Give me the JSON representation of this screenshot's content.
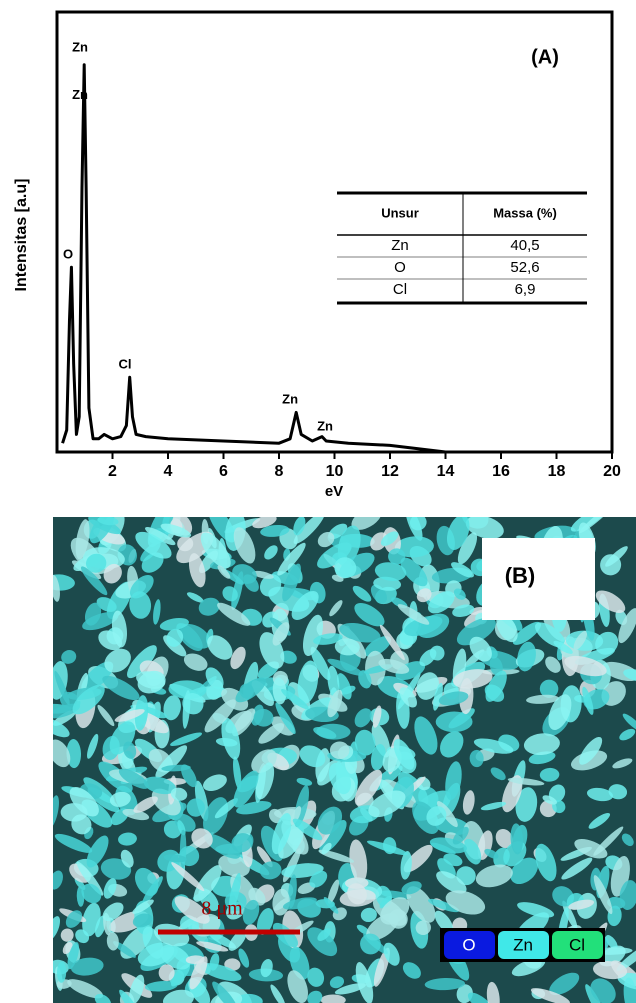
{
  "chart_data": {
    "type": "line",
    "title": "(A)",
    "x_label": "eV",
    "y_label": "Intensitas [a.u]",
    "x": [
      0.2,
      0.35,
      0.45,
      0.52,
      0.6,
      0.7,
      0.8,
      0.9,
      0.98,
      1.05,
      1.15,
      1.3,
      1.5,
      1.7,
      2.0,
      2.3,
      2.5,
      2.62,
      2.72,
      2.85,
      3.2,
      4,
      6,
      8,
      8.4,
      8.62,
      8.8,
      9.2,
      9.55,
      9.7,
      10.5,
      12,
      14
    ],
    "y": [
      2,
      5,
      30,
      42,
      20,
      4,
      8,
      60,
      88,
      60,
      10,
      3,
      3,
      4,
      3,
      3.5,
      6,
      17,
      8,
      4,
      3.5,
      3,
      2.5,
      2,
      3,
      9,
      4,
      2.5,
      3.5,
      2.5,
      2,
      1.5,
      0
    ],
    "color": "#000000",
    "xlim": [
      0,
      20
    ],
    "ylim": [
      0,
      100
    ],
    "xticks": [
      2,
      4,
      6,
      8,
      10,
      12,
      14,
      16,
      18,
      20
    ],
    "annotations": [
      {
        "text": "Zn",
        "x": 0.83,
        "y": 91.8
      },
      {
        "text": "Zn",
        "x": 0.83,
        "y": 81
      },
      {
        "text": "O",
        "x": 0.4,
        "y": 44.8
      },
      {
        "text": "Cl",
        "x": 2.45,
        "y": 19.8
      },
      {
        "text": "Zn",
        "x": 8.4,
        "y": 11.8
      },
      {
        "text": "Zn",
        "x": 9.66,
        "y": 5.7
      }
    ],
    "table": {
      "header": [
        "Unsur",
        "Massa (%)"
      ],
      "rows": [
        [
          "Zn",
          "40,5"
        ],
        [
          "O",
          "52,6"
        ],
        [
          "Cl",
          "6,9"
        ]
      ]
    }
  },
  "panel_b": {
    "label": "(B)",
    "scale_bar": "8 μm",
    "legend": [
      "O",
      "Zn",
      "Cl"
    ]
  }
}
